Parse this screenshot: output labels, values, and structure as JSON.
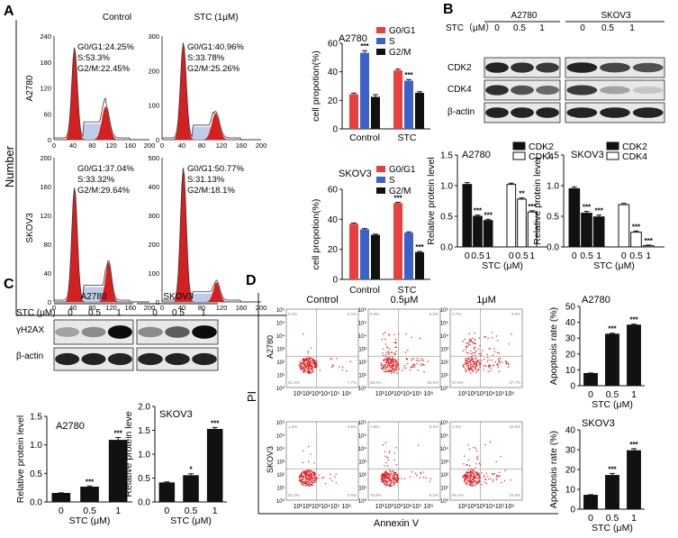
{
  "panel_labels": {
    "a": "A",
    "b": "B",
    "c": "C",
    "d": "D"
  },
  "panel_a": {
    "y_axis_label": "Number",
    "x_axis_label": "PI",
    "condition_labels": [
      "Control",
      "STC (1μM)"
    ],
    "row_labels": [
      "A2780",
      "SKOV3"
    ],
    "histogram_y_ticks": {
      "a2780_control": [
        "240",
        "180",
        "120",
        "60",
        "0"
      ],
      "a2780_stc": [
        "300",
        "200",
        "100",
        "0"
      ],
      "skov3_control": [
        "200",
        "160",
        "120",
        "80",
        "40",
        "0"
      ],
      "skov3_stc": [
        "500",
        "400",
        "300",
        "200",
        "100",
        "0"
      ]
    },
    "histogram_x_ticks": [
      "0",
      "40",
      "80",
      "120",
      "160",
      "200"
    ],
    "histogram_stats": {
      "a2780_control": [
        "G0/G1:24.25%",
        "S:53.3%",
        "G2/M:22.45%"
      ],
      "a2780_stc": [
        "G0/G1:40.96%",
        "S:33.78%",
        "G2/M:25.26%"
      ],
      "skov3_control": [
        "G0/G1:37.04%",
        "S:33.32%",
        "G2/M:29.64%"
      ],
      "skov3_stc": [
        "G0/G1:50.77%",
        "S:31.13%",
        "G2/M:18.1%"
      ]
    },
    "colors": {
      "red": "#e8403c",
      "blue": "#3b62c8",
      "black": "#111111"
    }
  },
  "chart_data": [
    {
      "id": "a_a2780",
      "type": "bar",
      "title": "A2780",
      "ylabel": "cell propotion(%)",
      "categories": [
        "Control",
        "STC"
      ],
      "ylim": [
        0,
        60
      ],
      "yticks": [
        "0",
        "20",
        "40",
        "60"
      ],
      "series": [
        {
          "name": "G0/G1",
          "values": [
            24.25,
            40.96
          ],
          "errors": [
            0.8,
            0.9
          ]
        },
        {
          "name": "S",
          "values": [
            53.3,
            33.78
          ],
          "errors": [
            1.5,
            0.8
          ]
        },
        {
          "name": "G2/M",
          "values": [
            22.45,
            25.26
          ],
          "errors": [
            1.5,
            0.8
          ]
        }
      ],
      "significance": [
        [
          "",
          ""
        ],
        [
          "***",
          "***"
        ],
        [
          "",
          ""
        ]
      ]
    },
    {
      "id": "a_skov3",
      "type": "bar",
      "title": "SKOV3",
      "ylabel": "cell propotion(%)",
      "categories": [
        "Control",
        "STC"
      ],
      "ylim": [
        0,
        60
      ],
      "yticks": [
        "0",
        "20",
        "40",
        "60"
      ],
      "series": [
        {
          "name": "G0/G1",
          "values": [
            37.04,
            50.77
          ],
          "errors": [
            0.5,
            0.5
          ]
        },
        {
          "name": "S",
          "values": [
            33.32,
            31.13
          ],
          "errors": [
            0.5,
            0.5
          ]
        },
        {
          "name": "G2/M",
          "values": [
            29.64,
            18.1
          ],
          "errors": [
            0.5,
            0.5
          ]
        }
      ],
      "significance": [
        [
          "",
          "***"
        ],
        [
          "",
          ""
        ],
        [
          "",
          "***"
        ]
      ]
    },
    {
      "id": "b_a2780",
      "type": "bar",
      "title": "A2780",
      "ylabel": "Relative protein level",
      "xlabel": "STC (μM)",
      "categories": [
        "0",
        "0.5",
        "1"
      ],
      "ylim": [
        0,
        1.5
      ],
      "yticks": [
        "0.0",
        "0.5",
        "1.0",
        "1.5"
      ],
      "series": [
        {
          "name": "CDK2",
          "values": [
            1.02,
            0.5,
            0.43
          ],
          "errors": [
            0.03,
            0.02,
            0.02
          ]
        },
        {
          "name": "CDK4",
          "values": [
            1.02,
            0.78,
            0.57
          ],
          "errors": [
            0.02,
            0.02,
            0.02
          ]
        }
      ],
      "significance": [
        [
          "",
          "***",
          "***"
        ],
        [
          "",
          "**",
          "***"
        ]
      ]
    },
    {
      "id": "b_skov3",
      "type": "bar",
      "title": "SKOV3",
      "ylabel": "Relative protein level",
      "xlabel": "STC (μM)",
      "categories": [
        "0",
        "0.5",
        "1"
      ],
      "ylim": [
        0,
        1.5
      ],
      "yticks": [
        "0.0",
        "0.5",
        "1.0",
        "1.5"
      ],
      "series": [
        {
          "name": "CDK2",
          "values": [
            0.95,
            0.55,
            0.49
          ],
          "errors": [
            0.03,
            0.03,
            0.03
          ]
        },
        {
          "name": "CDK4",
          "values": [
            0.69,
            0.24,
            0.02
          ],
          "errors": [
            0.02,
            0.02,
            0.01
          ]
        }
      ],
      "significance": [
        [
          "",
          "***",
          "***"
        ],
        [
          "",
          "***",
          "***"
        ]
      ]
    },
    {
      "id": "c_a2780",
      "type": "bar",
      "title": "A2780",
      "ylabel": "Relative protein level",
      "xlabel": "STC (μM)",
      "categories": [
        "0",
        "0.5",
        "1"
      ],
      "ylim": [
        0,
        1.5
      ],
      "yticks": [
        "0.0",
        "0.5",
        "1.0",
        "1.5"
      ],
      "series": [
        {
          "name": "",
          "values": [
            0.15,
            0.26,
            1.08
          ],
          "errors": [
            0.01,
            0.02,
            0.05
          ]
        }
      ],
      "significance": [
        [
          "",
          "***",
          "***"
        ]
      ]
    },
    {
      "id": "c_skov3",
      "type": "bar",
      "title": "SKOV3",
      "ylabel": "Relative protein leve",
      "xlabel": "STC (μM)",
      "categories": [
        "0",
        "0.5",
        "1"
      ],
      "ylim": [
        0,
        2.0
      ],
      "yticks": [
        "0.0",
        "0.5",
        "1.0",
        "1.5",
        "2.0"
      ],
      "series": [
        {
          "name": "",
          "values": [
            0.4,
            0.55,
            1.52
          ],
          "errors": [
            0.02,
            0.04,
            0.04
          ]
        }
      ],
      "significance": [
        [
          "",
          "*",
          "***"
        ]
      ]
    },
    {
      "id": "d_a2780",
      "type": "bar",
      "title": "A2780",
      "ylabel": "Apoptosis rate (%)",
      "xlabel": "STC (μM)",
      "categories": [
        "0",
        "0.5",
        "1"
      ],
      "ylim": [
        0,
        50
      ],
      "yticks": [
        "0",
        "10",
        "20",
        "30",
        "40",
        "50"
      ],
      "series": [
        {
          "name": "",
          "values": [
            7.7,
            32.5,
            38.2
          ],
          "errors": [
            0.3,
            0.6,
            0.6
          ]
        }
      ],
      "significance": [
        [
          "",
          "***",
          "***"
        ]
      ]
    },
    {
      "id": "d_skov3",
      "type": "bar",
      "title": "SKOV3",
      "ylabel": "Apoptosis rate (%)",
      "xlabel": "STC (μM)",
      "categories": [
        "0",
        "0.5",
        "1"
      ],
      "ylim": [
        0,
        40
      ],
      "yticks": [
        "0",
        "10",
        "20",
        "30",
        "40"
      ],
      "series": [
        {
          "name": "",
          "values": [
            7.0,
            17.0,
            29.5
          ],
          "errors": [
            0.3,
            1.0,
            1.0
          ]
        }
      ],
      "significance": [
        [
          "",
          "***",
          "***"
        ]
      ]
    }
  ],
  "panel_b": {
    "stc_label": "STC（μM）",
    "cell_lines": [
      "A2780",
      "SKOV3"
    ],
    "concentrations": [
      "0",
      "0.5",
      "1"
    ],
    "proteins": [
      "CDK2",
      "CDK4",
      "β-actin"
    ],
    "legend": [
      "CDK2",
      "CDK4"
    ]
  },
  "panel_c": {
    "stc_label": "STC (μM)",
    "cell_lines": [
      "A2780",
      "SKOV3"
    ],
    "concentrations": [
      "0",
      "0.5",
      "1"
    ],
    "proteins": [
      "γH2AX",
      "β-actin"
    ]
  },
  "panel_d": {
    "y_axis_label": "PI",
    "x_axis_label": "Annexin V",
    "condition_labels": [
      "Control",
      "0.5μM",
      "1μM"
    ],
    "row_labels": [
      "A2780",
      "SKOV3"
    ],
    "facs_y_ticks": [
      "10⁶",
      "10⁵",
      "10⁴",
      "10³",
      "10²",
      "10¹",
      "10⁰"
    ],
    "facs_x_ticks": "10¹10²10³10⁴10⁵ 10⁶",
    "facs_x_ticks_2": "10¹10²10³10⁴10⁵10⁶",
    "quadrants": {
      "a2780_control": [
        "0.2%",
        "0.2%",
        "91.8%",
        "7.7%"
      ],
      "a2780_05": [
        "6.6%",
        "5.8%",
        "66.6%",
        "26.6%"
      ],
      "a2780_1": [
        "0.7%",
        "3.5%",
        "57.8%",
        "37.7%"
      ],
      "skov3_control": [
        "1.2%",
        "3.8%",
        "91.2%",
        "3.9%"
      ],
      "skov3_05": [
        "1.8%",
        "9.2%",
        "75.8%",
        "8.2%"
      ],
      "skov3_1": [
        "2.2%",
        "15.5%",
        "66.4%",
        "15.9%"
      ]
    }
  }
}
